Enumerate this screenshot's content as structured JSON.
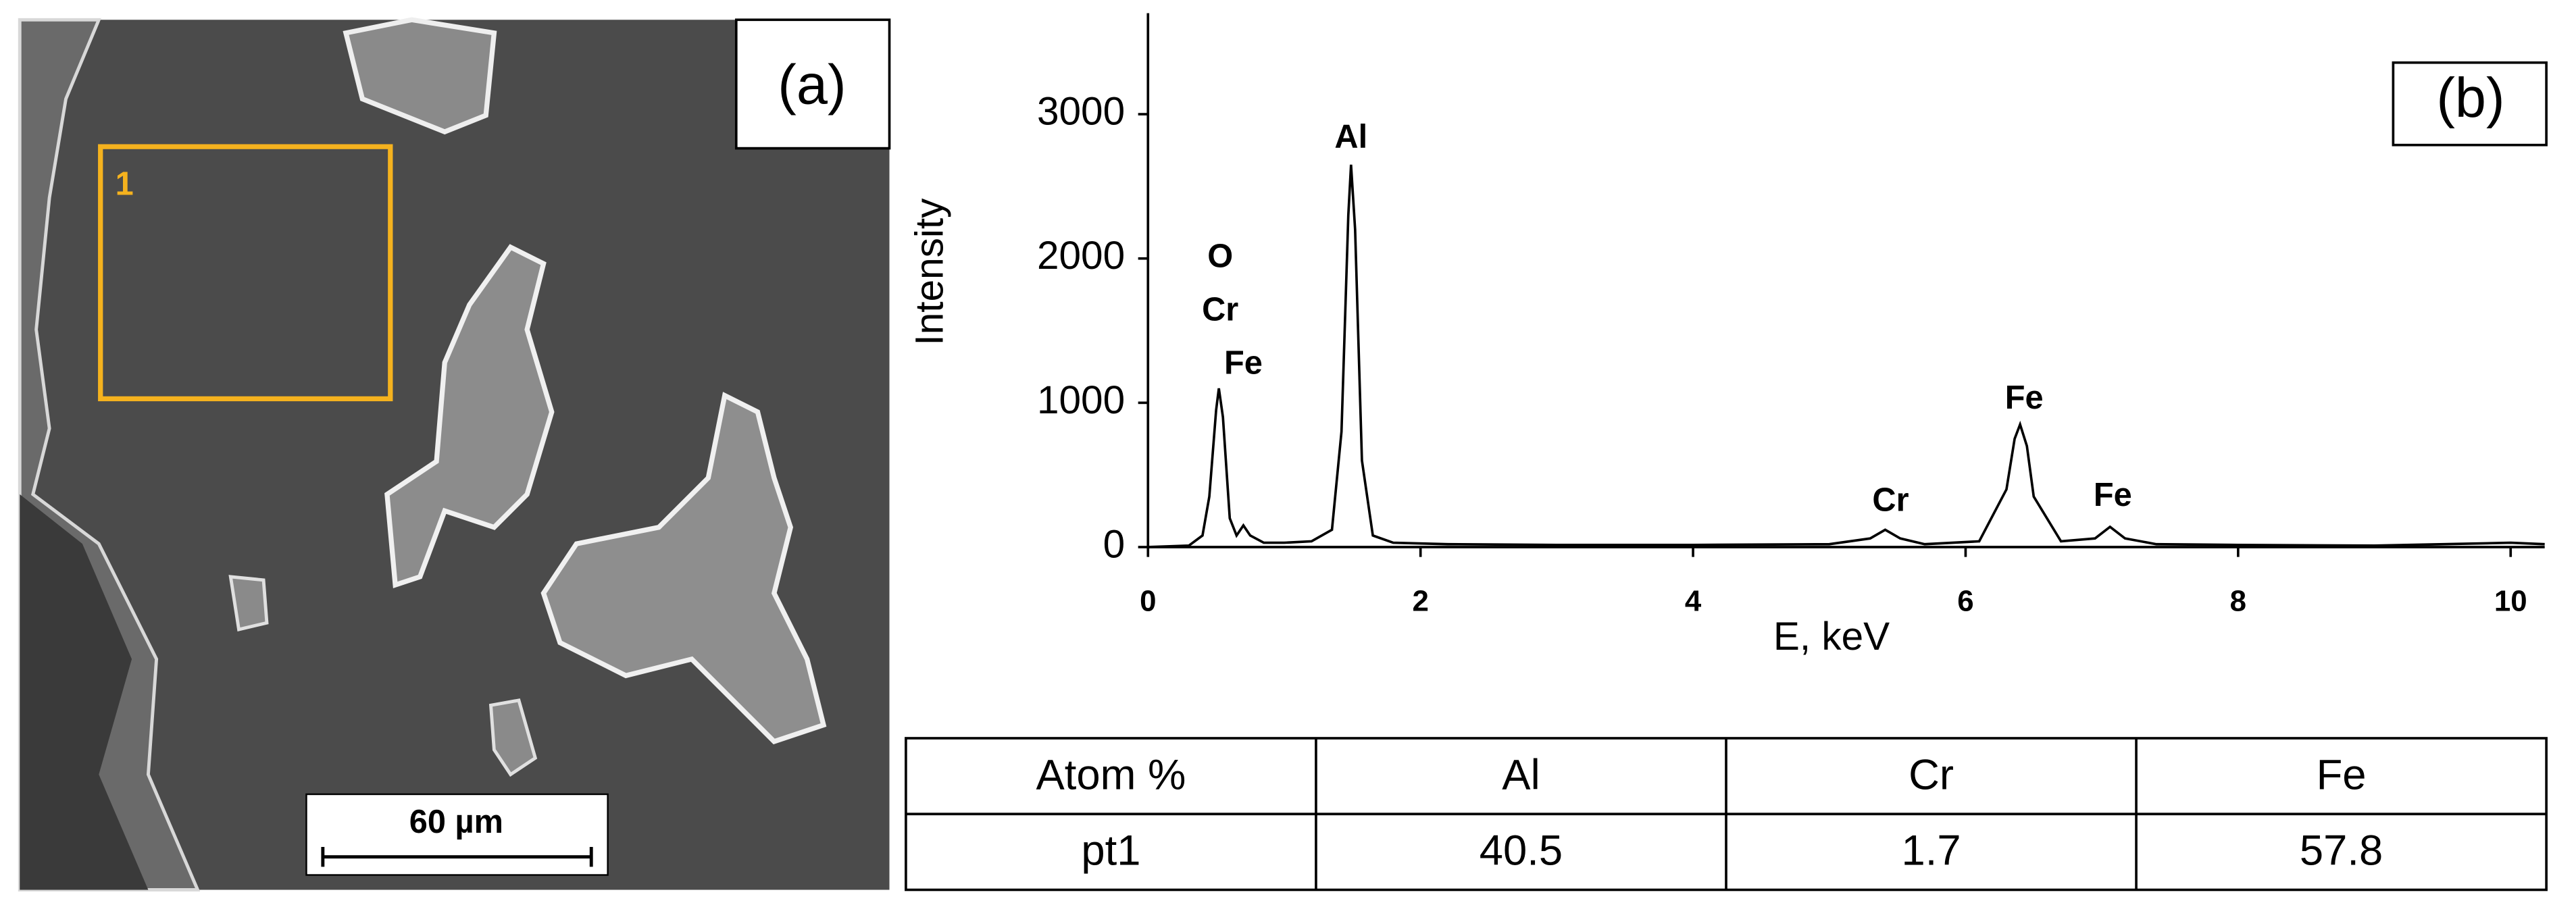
{
  "panel_a": {
    "label": "(a)",
    "region_label": "1",
    "scale_bar": "60 µm"
  },
  "chart_data": {
    "type": "line",
    "label": "(b)",
    "x_label": "E, keV",
    "y_label": "Intensity",
    "x": [
      0,
      0.3,
      0.4,
      0.45,
      0.5,
      0.52,
      0.55,
      0.6,
      0.65,
      0.7,
      0.75,
      0.85,
      1.0,
      1.2,
      1.35,
      1.42,
      1.47,
      1.49,
      1.52,
      1.57,
      1.65,
      1.8,
      2.2,
      3,
      4,
      5,
      5.3,
      5.41,
      5.52,
      5.7,
      6.1,
      6.3,
      6.36,
      6.4,
      6.45,
      6.5,
      6.7,
      6.95,
      7.06,
      7.17,
      7.4,
      8,
      9,
      10,
      10.25
    ],
    "values": [
      0,
      10,
      80,
      350,
      950,
      1100,
      900,
      200,
      80,
      150,
      80,
      30,
      30,
      40,
      120,
      800,
      2300,
      2650,
      2200,
      600,
      80,
      30,
      20,
      15,
      15,
      20,
      60,
      120,
      60,
      20,
      40,
      400,
      750,
      850,
      700,
      350,
      40,
      60,
      140,
      60,
      20,
      15,
      10,
      30,
      20
    ],
    "color": "#000000",
    "xlim": [
      0,
      10.25
    ],
    "ylim": [
      0,
      3700
    ],
    "xticks": [
      0,
      2,
      4,
      6,
      8,
      10
    ],
    "yticks": [
      0,
      1000,
      2000,
      3000
    ],
    "annotations": [
      {
        "text": "O",
        "x": 0.53,
        "y": 2000
      },
      {
        "text": "Cr",
        "x": 0.53,
        "y": 1630
      },
      {
        "text": "Fe",
        "x": 0.7,
        "y": 1260
      },
      {
        "text": "Al",
        "x": 1.49,
        "y": 2830
      },
      {
        "text": "Cr",
        "x": 5.45,
        "y": 310
      },
      {
        "text": "Fe",
        "x": 6.43,
        "y": 1020
      },
      {
        "text": "Fe",
        "x": 7.08,
        "y": 345
      }
    ]
  },
  "table": {
    "header": [
      "Atom %",
      "Al",
      "Cr",
      "Fe"
    ],
    "rows": [
      [
        "pt1",
        40.5,
        1.7,
        57.8
      ]
    ]
  }
}
